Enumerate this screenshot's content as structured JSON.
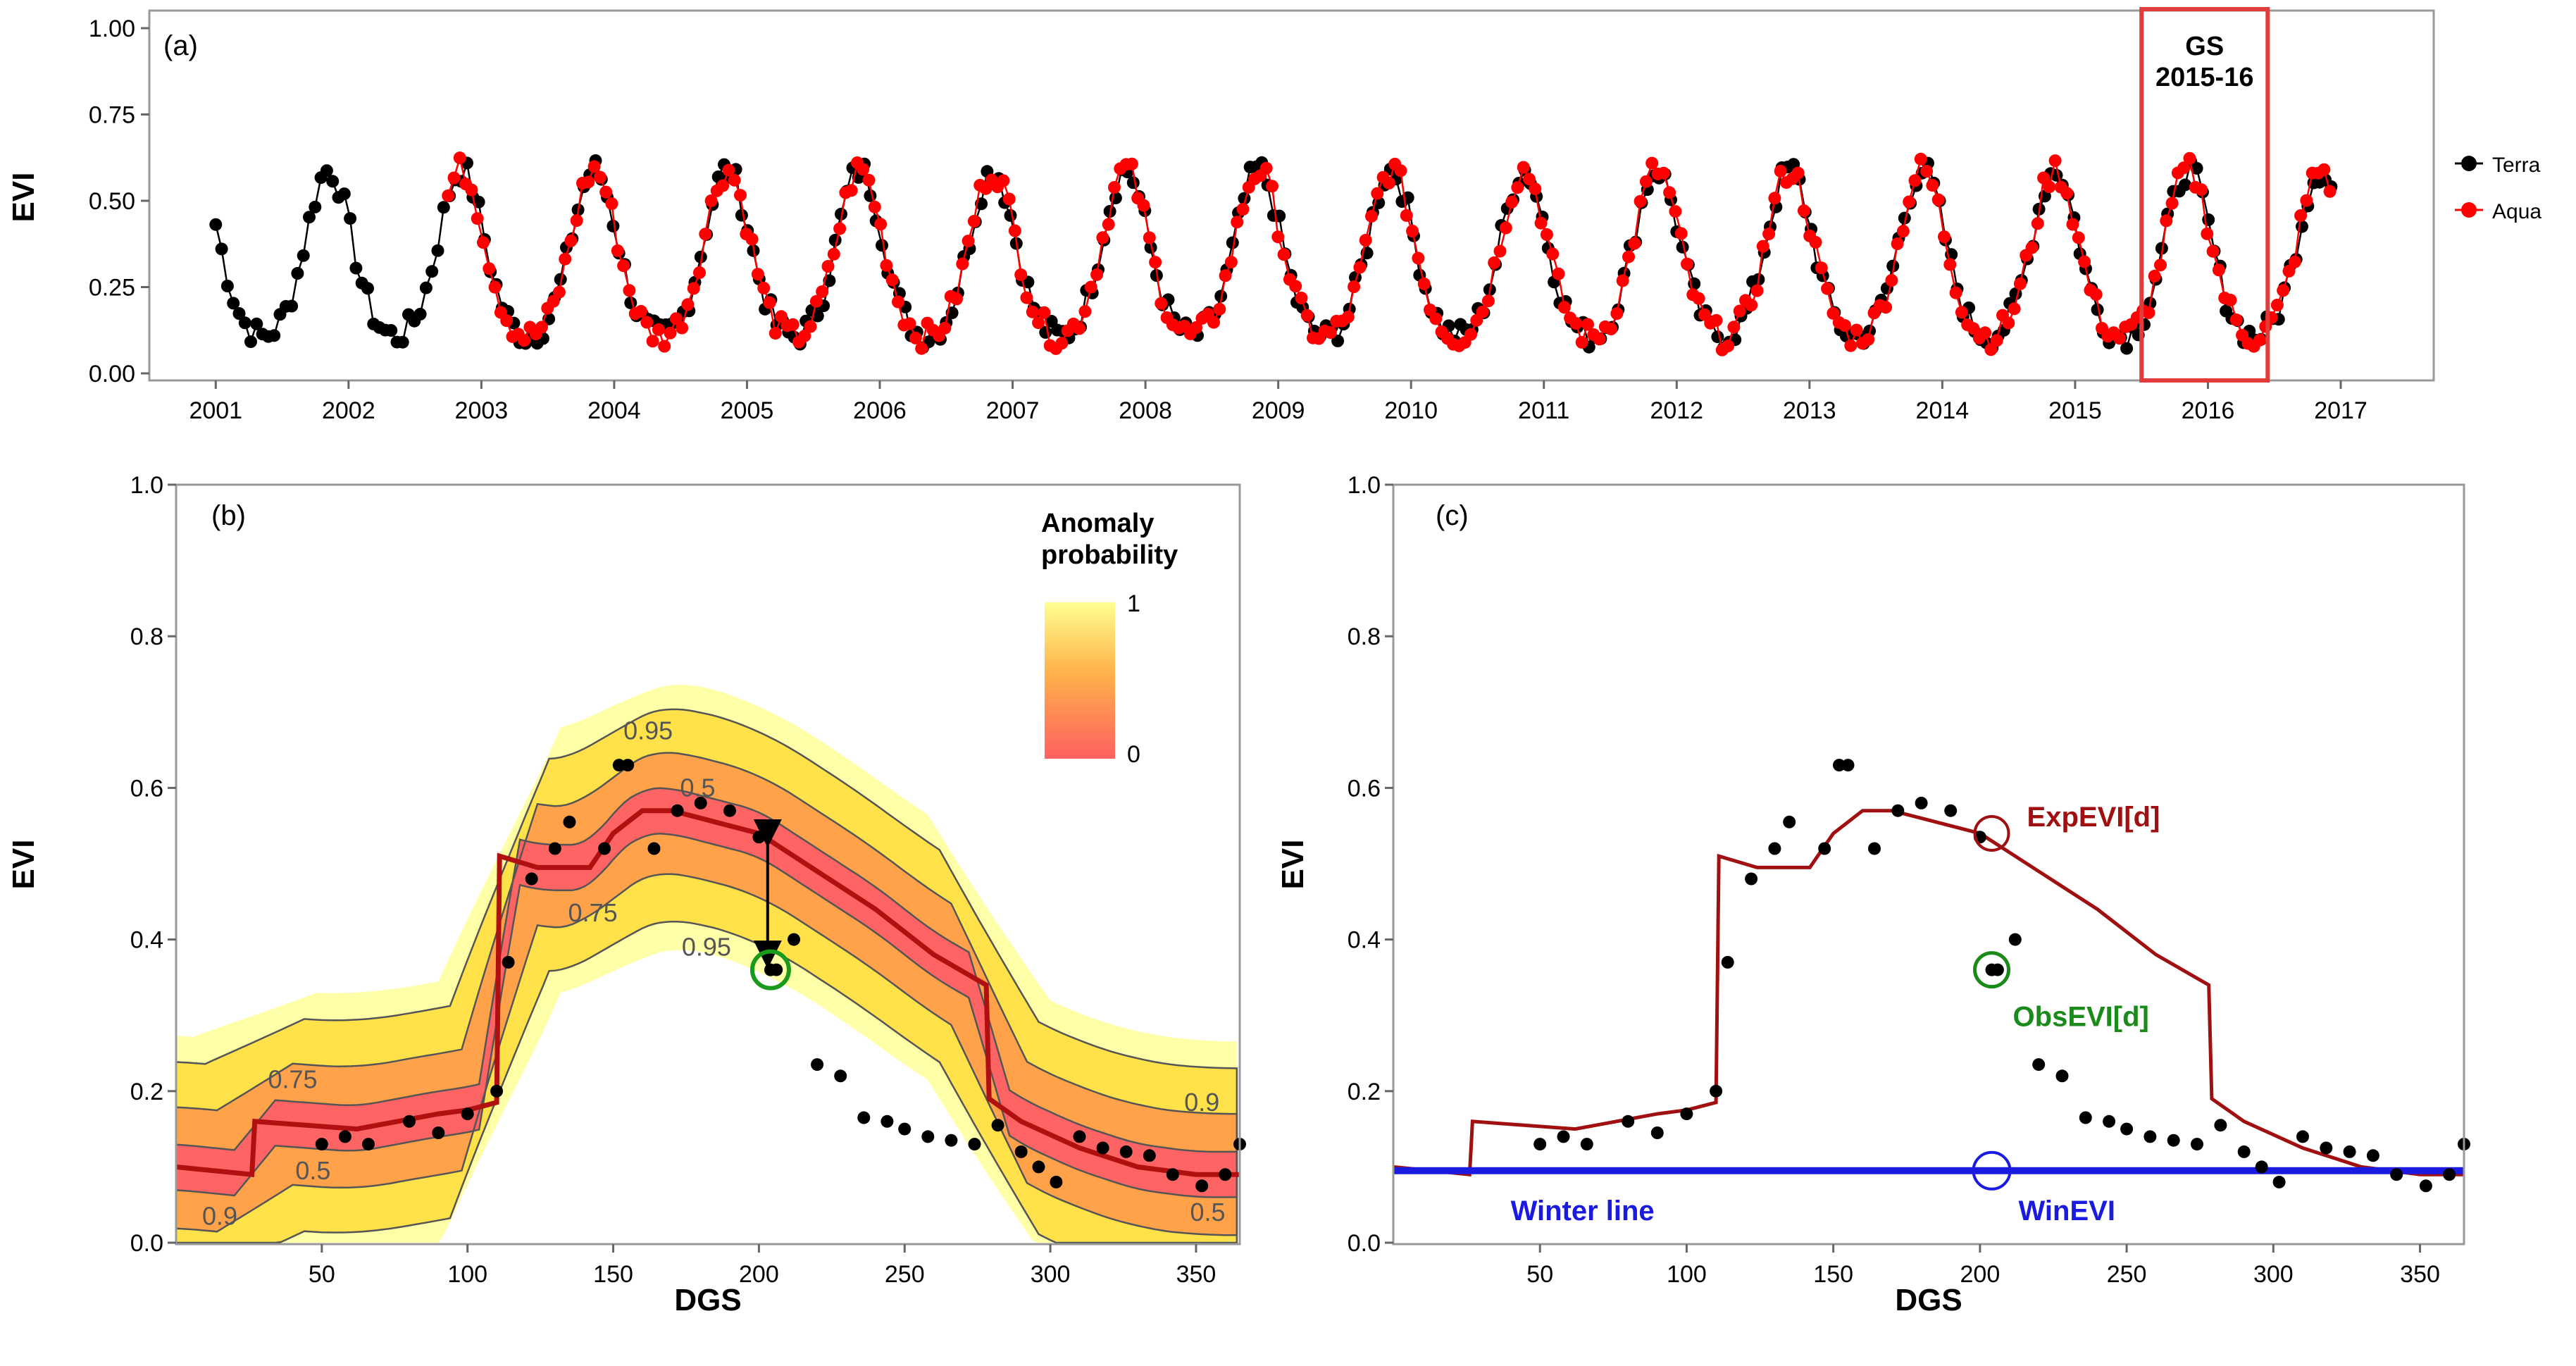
{
  "chart_data": [
    {
      "type": "line",
      "panel_label": "(a)",
      "ylabel": "EVI",
      "ylim": [
        0,
        1.0
      ],
      "yticks": [
        "0.00",
        "0.25",
        "0.50",
        "0.75",
        "1.00"
      ],
      "ytick_values": [
        0,
        0.25,
        0.5,
        0.75,
        1.0
      ],
      "xlim": [
        2000.5,
        2017.7
      ],
      "xticks": [
        "2001",
        "2002",
        "2003",
        "2004",
        "2005",
        "2006",
        "2007",
        "2008",
        "2009",
        "2010",
        "2011",
        "2012",
        "2013",
        "2014",
        "2015",
        "2016",
        "2017"
      ],
      "xtick_values": [
        2001,
        2002,
        2003,
        2004,
        2005,
        2006,
        2007,
        2008,
        2009,
        2010,
        2011,
        2012,
        2013,
        2014,
        2015,
        2016,
        2017
      ],
      "highlight": {
        "label": "GS",
        "sublabel": "2015-16",
        "x_range": [
          2015.5,
          2016.45
        ],
        "color": "#e23b3b"
      },
      "legend": [
        {
          "name": "Terra",
          "color": "#000000"
        },
        {
          "name": "Aqua",
          "color": "#ff0000"
        }
      ],
      "season": {
        "base": 0.1,
        "peak": 0.59,
        "peak_offset": 0.85,
        "width": 0.17
      }
    },
    {
      "type": "heatmap",
      "panel_label": "(b)",
      "xlabel": "DGS",
      "ylabel": "EVI",
      "xlim": [
        0,
        365
      ],
      "ylim": [
        0,
        1.0
      ],
      "xticks": [
        "50",
        "100",
        "150",
        "200",
        "250",
        "300",
        "350"
      ],
      "xtick_values": [
        50,
        100,
        150,
        200,
        250,
        300,
        350
      ],
      "yticks": [
        "0.0",
        "0.2",
        "0.4",
        "0.6",
        "0.8",
        "1.0"
      ],
      "ytick_values": [
        0,
        0.2,
        0.4,
        0.6,
        0.8,
        1.0
      ],
      "legend_title": [
        "Anomaly",
        "probability"
      ],
      "legend_max": "1",
      "legend_min": "0",
      "contour_labels": [
        "0.95",
        "0.5",
        "0.75",
        "0.95",
        "0.75",
        "0.5",
        "0.9",
        "0.9",
        "0.5"
      ],
      "contour_label_positions": [
        [
          162,
          0.675
        ],
        [
          179,
          0.6
        ],
        [
          143,
          0.435
        ],
        [
          182,
          0.39
        ],
        [
          40,
          0.215
        ],
        [
          47,
          0.095
        ],
        [
          352,
          0.185
        ],
        [
          15,
          0.035
        ],
        [
          354,
          0.04
        ]
      ],
      "contour_offsets": [
        0.03,
        0.08,
        0.14
      ],
      "expected_curve": {
        "x": [
          0,
          26,
          27,
          62,
          90,
          100,
          110,
          111,
          124,
          142,
          150,
          160,
          170,
          180,
          200,
          220,
          240,
          260,
          278,
          279,
          290,
          310,
          330,
          350,
          365
        ],
        "y": [
          0.1,
          0.09,
          0.16,
          0.15,
          0.17,
          0.175,
          0.185,
          0.51,
          0.495,
          0.495,
          0.54,
          0.57,
          0.57,
          0.56,
          0.54,
          0.49,
          0.44,
          0.38,
          0.34,
          0.19,
          0.16,
          0.125,
          0.1,
          0.09,
          0.09
        ]
      },
      "observed_points": {
        "x": [
          50,
          58,
          66,
          80,
          90,
          100,
          110,
          114,
          122,
          130,
          135,
          147,
          152,
          155,
          164,
          172,
          180,
          190,
          200,
          206,
          212,
          220,
          228,
          236,
          244,
          250,
          258,
          266,
          274,
          282,
          290,
          296,
          302,
          310,
          318,
          326,
          334,
          342,
          352,
          360,
          365
        ],
        "y": [
          0.13,
          0.14,
          0.13,
          0.16,
          0.145,
          0.17,
          0.2,
          0.37,
          0.48,
          0.52,
          0.555,
          0.52,
          0.63,
          0.63,
          0.52,
          0.57,
          0.58,
          0.57,
          0.535,
          0.36,
          0.4,
          0.235,
          0.22,
          0.165,
          0.16,
          0.15,
          0.14,
          0.135,
          0.13,
          0.155,
          0.12,
          0.1,
          0.08,
          0.14,
          0.125,
          0.12,
          0.115,
          0.09,
          0.075,
          0.09,
          0.13
        ]
      },
      "highlighted_point": {
        "x": 204,
        "y": 0.36,
        "color": "#1a9a1a"
      },
      "arrow": {
        "x": 203,
        "y_from": 0.54,
        "y_to": 0.38
      }
    },
    {
      "type": "line",
      "panel_label": "(c)",
      "xlabel": "DGS",
      "ylabel": "EVI",
      "xlim": [
        0,
        365
      ],
      "ylim": [
        0,
        1.0
      ],
      "xticks": [
        "50",
        "100",
        "150",
        "200",
        "250",
        "300",
        "350"
      ],
      "xtick_values": [
        50,
        100,
        150,
        200,
        250,
        300,
        350
      ],
      "yticks": [
        "0.0",
        "0.2",
        "0.4",
        "0.6",
        "0.8",
        "1.0"
      ],
      "ytick_values": [
        0,
        0.2,
        0.4,
        0.6,
        0.8,
        1.0
      ],
      "winter_line_value": 0.095,
      "winter_line_label": "Winter line",
      "exp_label": "ExpEVI[d]",
      "obs_label": "ObsEVI[d]",
      "win_label": "WinEVI",
      "exp_point": {
        "x": 204,
        "y": 0.54
      },
      "obs_point": {
        "x": 204,
        "y": 0.36
      },
      "win_point": {
        "x": 204,
        "y": 0.095
      },
      "exp_color": "#a01010",
      "obs_color": "#1a8a1a",
      "win_color": "#1a1ae0"
    }
  ]
}
